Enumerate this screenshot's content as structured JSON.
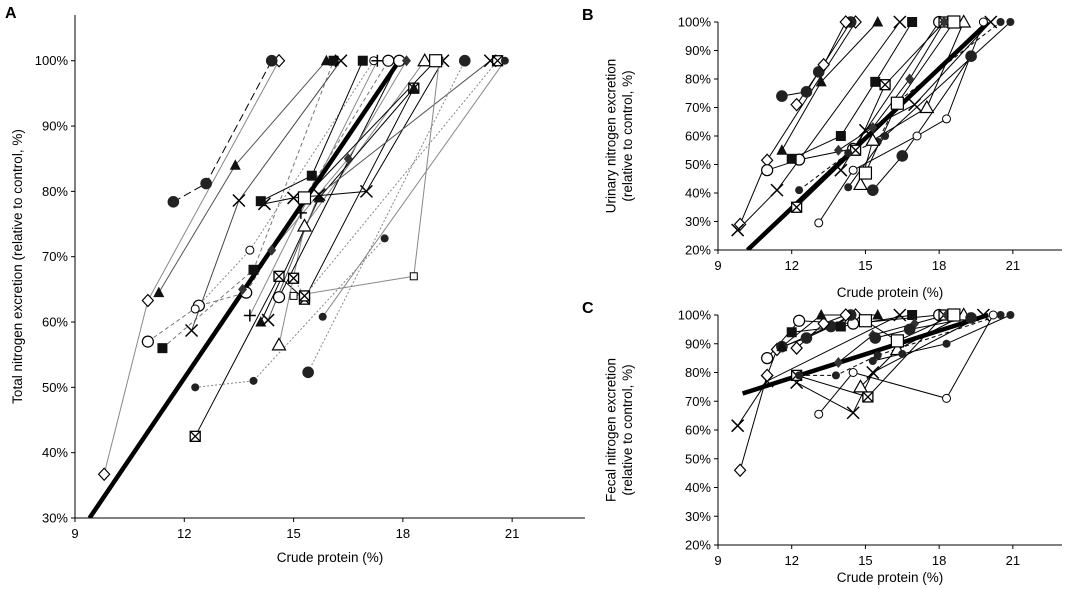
{
  "figure": {
    "description": "Nitrogen excretion relative to control vs dietary crude protein, three panels"
  },
  "chart_data": [
    {
      "panel": "A",
      "type": "scatter",
      "xlabel": "Crude protein (%)",
      "ylabel": "Total nitrogen excretion (relative to control, %)",
      "xlim": [
        9,
        23
      ],
      "ylim": [
        30,
        107
      ],
      "xticks": [
        9,
        12,
        15,
        18,
        21
      ],
      "yticks": [
        30,
        40,
        50,
        60,
        70,
        80,
        90,
        100
      ],
      "ytick_suffix": "%",
      "regression": {
        "x": [
          9.4,
          17.9
        ],
        "y": [
          30,
          100
        ]
      },
      "series": [
        {
          "name": "s1",
          "marker": "diamond",
          "color": "#888888",
          "dash": "none",
          "x": [
            9.8,
            11.0,
            14.6
          ],
          "y": [
            36.7,
            63.3,
            100
          ]
        },
        {
          "name": "s2",
          "marker": "triangle-filled",
          "color": "#555555",
          "dash": "none",
          "x": [
            11.3,
            13.4,
            15.9
          ],
          "y": [
            64.5,
            84,
            100
          ]
        },
        {
          "name": "s3",
          "marker": "circle",
          "color": "#777777",
          "dash": "4,3",
          "x": [
            11.0,
            12.4,
            13.7,
            17.6
          ],
          "y": [
            57,
            62.5,
            64.5,
            100
          ]
        },
        {
          "name": "s4",
          "marker": "square-filled",
          "color": "#777777",
          "dash": "4,3",
          "x": [
            11.4,
            13.9,
            16.1
          ],
          "y": [
            56,
            68,
            100
          ]
        },
        {
          "name": "s5",
          "marker": "circle-filled",
          "color": "#000000",
          "dash": "8,4",
          "x": [
            11.7,
            12.6,
            14.4
          ],
          "y": [
            78.4,
            81.2,
            100
          ]
        },
        {
          "name": "s6",
          "marker": "x",
          "color": "#444444",
          "dash": "none",
          "x": [
            12.2,
            13.5,
            16.3
          ],
          "y": [
            58.7,
            78.6,
            100
          ]
        },
        {
          "name": "s7",
          "marker": "circle-small",
          "color": "#888888",
          "dash": "2,2",
          "x": [
            12.3,
            13.8,
            17.2
          ],
          "y": [
            62,
            71,
            100
          ]
        },
        {
          "name": "s8",
          "marker": "circle-filled-small",
          "color": "#888888",
          "dash": "2,2",
          "x": [
            12.3,
            13.9,
            17.5
          ],
          "y": [
            50,
            51,
            72.8
          ]
        },
        {
          "name": "s9",
          "marker": "square-x",
          "color": "#000000",
          "dash": "none",
          "x": [
            12.3,
            14.6,
            15.3,
            18.3
          ],
          "y": [
            42.5,
            67,
            63.5,
            95.8
          ]
        },
        {
          "name": "s10",
          "marker": "square-x",
          "color": "#888888",
          "dash": "2,2",
          "x": [
            15.0,
            15.3,
            20.6
          ],
          "y": [
            66.7,
            64,
            100
          ]
        },
        {
          "name": "s11",
          "marker": "triangle",
          "color": "#888888",
          "dash": "none",
          "x": [
            14.6,
            15.3,
            18.6
          ],
          "y": [
            56.5,
            74.7,
            100
          ]
        },
        {
          "name": "s12",
          "marker": "circle",
          "color": "#000000",
          "dash": "none",
          "x": [
            14.6,
            17.9
          ],
          "y": [
            63.8,
            100
          ]
        },
        {
          "name": "s13",
          "marker": "plus",
          "color": "#888888",
          "dash": "none",
          "x": [
            13.8,
            15.2,
            17.3
          ],
          "y": [
            61,
            76.7,
            100
          ]
        },
        {
          "name": "s14",
          "marker": "x",
          "color": "#000000",
          "dash": "none",
          "x": [
            14.2,
            15.0,
            17.0,
            19.1
          ],
          "y": [
            78.1,
            79,
            80,
            100
          ]
        },
        {
          "name": "s15",
          "marker": "diamond-filled",
          "color": "#888888",
          "dash": "none",
          "x": [
            13.6,
            14.4,
            16.5,
            18.1
          ],
          "y": [
            65,
            71,
            85,
            100
          ]
        },
        {
          "name": "s16",
          "marker": "triangle-filled",
          "color": "#000000",
          "dash": "none",
          "x": [
            14.1,
            15.7,
            18.3
          ],
          "y": [
            60,
            79,
            95.8
          ]
        },
        {
          "name": "s17",
          "marker": "square-filled",
          "color": "#000000",
          "dash": "none",
          "x": [
            14.1,
            15.5,
            16.9
          ],
          "y": [
            78.5,
            82.4,
            100
          ]
        },
        {
          "name": "s18",
          "marker": "x",
          "color": "#555555",
          "dash": "none",
          "x": [
            14.3,
            15.7,
            20.4
          ],
          "y": [
            60.3,
            79.5,
            100
          ]
        },
        {
          "name": "s19",
          "marker": "circle-filled-small",
          "color": "#888888",
          "dash": "none",
          "x": [
            15.8,
            20.8
          ],
          "y": [
            60.8,
            100
          ]
        },
        {
          "name": "s20",
          "marker": "square-small",
          "color": "#888888",
          "dash": "none",
          "x": [
            15.0,
            18.3,
            19.0
          ],
          "y": [
            64,
            67,
            100
          ]
        },
        {
          "name": "s21",
          "marker": "circle-filled",
          "color": "#888888",
          "dash": "2,2",
          "x": [
            15.4,
            19.7
          ],
          "y": [
            52.3,
            100
          ]
        },
        {
          "name": "s22",
          "marker": "square",
          "color": "#000000",
          "dash": "none",
          "x": [
            15.3,
            18.9
          ],
          "y": [
            79,
            100
          ]
        }
      ]
    },
    {
      "panel": "B",
      "type": "scatter",
      "xlabel": "Crude protein (%)",
      "ylabel": "Urinary nitrogen excretion (relative to control, %)",
      "xlim": [
        9,
        23
      ],
      "ylim": [
        20,
        100
      ],
      "xticks": [
        9,
        12,
        15,
        18,
        21
      ],
      "yticks": [
        20,
        30,
        40,
        50,
        60,
        70,
        80,
        90,
        100
      ],
      "ytick_suffix": "%",
      "regression": {
        "x": [
          10.2,
          20.0
        ],
        "y": [
          20,
          100
        ]
      },
      "series": [
        {
          "name": "s1",
          "marker": "diamond",
          "color": "#000000",
          "dash": "none",
          "x": [
            9.9,
            11.0,
            14.6
          ],
          "y": [
            29,
            51.5,
            100
          ]
        },
        {
          "name": "s2",
          "marker": "x",
          "color": "#000000",
          "dash": "none",
          "x": [
            9.8,
            11.4,
            16.4
          ],
          "y": [
            27,
            41,
            100
          ]
        },
        {
          "name": "s3",
          "marker": "circle-filled",
          "color": "#000000",
          "dash": "none",
          "x": [
            11.6,
            12.6,
            13.1,
            14.4
          ],
          "y": [
            74,
            75.5,
            82.5,
            100
          ]
        },
        {
          "name": "s4",
          "marker": "diamond",
          "color": "#000000",
          "dash": "none",
          "x": [
            12.2,
            13.3,
            14.2
          ],
          "y": [
            71,
            85,
            100
          ]
        },
        {
          "name": "s5",
          "marker": "triangle-filled",
          "color": "#000000",
          "dash": "none",
          "x": [
            11.6,
            13.2,
            15.5
          ],
          "y": [
            55,
            79,
            100
          ]
        },
        {
          "name": "s6",
          "marker": "circle",
          "color": "#000000",
          "dash": "none",
          "x": [
            11.0,
            12.3,
            14.5,
            18.0
          ],
          "y": [
            48,
            51.7,
            55.5,
            100
          ]
        },
        {
          "name": "s7",
          "marker": "square-filled",
          "color": "#000000",
          "dash": "none",
          "x": [
            12.0,
            14.0,
            15.4,
            16.9
          ],
          "y": [
            52,
            60,
            79,
            100
          ]
        },
        {
          "name": "s8",
          "marker": "square-x",
          "color": "#000000",
          "dash": "none",
          "x": [
            12.2,
            14.6,
            15.8,
            18.2
          ],
          "y": [
            35,
            55,
            78,
            100
          ]
        },
        {
          "name": "s9",
          "marker": "circle-filled-small",
          "color": "#000000",
          "dash": "4,3",
          "x": [
            12.3,
            14.3,
            15.5,
            16.3,
            20.5
          ],
          "y": [
            41,
            54,
            58,
            72,
            100
          ]
        },
        {
          "name": "s10",
          "marker": "circle-small",
          "color": "#000000",
          "dash": "none",
          "x": [
            13.1,
            14.5,
            17.1,
            18.3,
            19.8
          ],
          "y": [
            29.5,
            48,
            60,
            66,
            100
          ]
        },
        {
          "name": "s11",
          "marker": "circle-filled",
          "color": "#000000",
          "dash": "none",
          "x": [
            15.3,
            16.5,
            19.3
          ],
          "y": [
            41,
            53,
            88
          ]
        },
        {
          "name": "s12",
          "marker": "triangle",
          "color": "#000000",
          "dash": "none",
          "x": [
            14.8,
            15.3,
            17.5,
            19.0
          ],
          "y": [
            43,
            58.5,
            70,
            100
          ]
        },
        {
          "name": "s13",
          "marker": "x",
          "color": "#000000",
          "dash": "none",
          "x": [
            14.0,
            15.0,
            17.0,
            20.1
          ],
          "y": [
            48,
            62,
            71,
            100
          ]
        },
        {
          "name": "s14",
          "marker": "square",
          "color": "#000000",
          "dash": "none",
          "x": [
            15.0,
            16.3,
            18.6
          ],
          "y": [
            47,
            71.5,
            100
          ]
        },
        {
          "name": "s15",
          "marker": "diamond-filled",
          "color": "#000000",
          "dash": "none",
          "x": [
            13.9,
            15.3,
            16.8,
            18.2
          ],
          "y": [
            55,
            63,
            80,
            100
          ]
        },
        {
          "name": "s16",
          "marker": "circle-filled-small",
          "color": "#000000",
          "dash": "none",
          "x": [
            14.3,
            15.8,
            20.9
          ],
          "y": [
            42,
            60,
            100
          ]
        }
      ]
    },
    {
      "panel": "C",
      "type": "scatter",
      "xlabel": "Crude protein (%)",
      "ylabel": "Fecal nitrogen excretion (relative to control, %)",
      "xlim": [
        9,
        23
      ],
      "ylim": [
        20,
        100
      ],
      "xticks": [
        9,
        12,
        15,
        18,
        21
      ],
      "yticks": [
        20,
        30,
        40,
        50,
        60,
        70,
        80,
        90,
        100
      ],
      "ytick_suffix": "%",
      "regression": {
        "x": [
          10.0,
          20.0
        ],
        "y": [
          72.7,
          100
        ]
      },
      "series": [
        {
          "name": "s1",
          "marker": "x",
          "color": "#000000",
          "dash": "none",
          "x": [
            9.8,
            11.0,
            16.4
          ],
          "y": [
            61.5,
            77,
            100
          ]
        },
        {
          "name": "s2",
          "marker": "diamond",
          "color": "#000000",
          "dash": "none",
          "x": [
            9.9,
            11.0,
            11.4,
            14.6
          ],
          "y": [
            46,
            79,
            88,
            100
          ]
        },
        {
          "name": "s3",
          "marker": "circle",
          "color": "#000000",
          "dash": "none",
          "x": [
            11.0,
            12.3,
            14.5,
            18.0
          ],
          "y": [
            85,
            98,
            97,
            100
          ]
        },
        {
          "name": "s4",
          "marker": "circle-filled",
          "color": "#000000",
          "dash": "none",
          "x": [
            11.6,
            12.6,
            13.6,
            14.4
          ],
          "y": [
            89,
            92,
            96,
            100
          ]
        },
        {
          "name": "s5",
          "marker": "diamond",
          "color": "#000000",
          "dash": "none",
          "x": [
            12.2,
            13.3,
            14.2
          ],
          "y": [
            88.5,
            97,
            100
          ]
        },
        {
          "name": "s6",
          "marker": "triangle-filled",
          "color": "#000000",
          "dash": "none",
          "x": [
            11.6,
            13.2,
            15.5
          ],
          "y": [
            89,
            100,
            100
          ]
        },
        {
          "name": "s7",
          "marker": "square-filled",
          "color": "#000000",
          "dash": "none",
          "x": [
            12.0,
            14.0,
            16.9
          ],
          "y": [
            94,
            96,
            100
          ]
        },
        {
          "name": "s8",
          "marker": "x",
          "color": "#000000",
          "dash": "none",
          "x": [
            12.2,
            14.5,
            15.3,
            19.8
          ],
          "y": [
            76.5,
            66,
            80,
            100
          ]
        },
        {
          "name": "s9",
          "marker": "circle-small",
          "color": "#000000",
          "dash": "none",
          "x": [
            13.1,
            14.5,
            18.3,
            20.2
          ],
          "y": [
            65.5,
            80,
            71,
            100
          ]
        },
        {
          "name": "s10",
          "marker": "square-x",
          "color": "#000000",
          "dash": "none",
          "x": [
            12.2,
            15.1,
            18.2
          ],
          "y": [
            79,
            71.5,
            100
          ]
        },
        {
          "name": "s11",
          "marker": "circle-filled-small",
          "color": "#000000",
          "dash": "4,3",
          "x": [
            12.3,
            13.8,
            15.5,
            20.5
          ],
          "y": [
            79,
            79,
            86,
            100
          ]
        },
        {
          "name": "s12",
          "marker": "triangle",
          "color": "#000000",
          "dash": "none",
          "x": [
            14.8,
            16.3,
            19.0
          ],
          "y": [
            75,
            88,
            100
          ]
        },
        {
          "name": "s13",
          "marker": "diamond-filled",
          "color": "#000000",
          "dash": "none",
          "x": [
            13.9,
            15.3,
            17.0,
            18.3
          ],
          "y": [
            83.5,
            93,
            97,
            100
          ]
        },
        {
          "name": "s14",
          "marker": "circle-filled-small",
          "color": "#000000",
          "dash": "none",
          "x": [
            15.3,
            16.5,
            18.3,
            20.9
          ],
          "y": [
            84,
            86.5,
            90,
            100
          ]
        },
        {
          "name": "s15",
          "marker": "square",
          "color": "#000000",
          "dash": "none",
          "x": [
            15.0,
            16.3,
            18.6
          ],
          "y": [
            98,
            91,
            100
          ]
        },
        {
          "name": "s16",
          "marker": "circle-filled",
          "color": "#000000",
          "dash": "none",
          "x": [
            15.4,
            16.8,
            19.3
          ],
          "y": [
            92,
            95,
            99
          ]
        }
      ]
    }
  ]
}
